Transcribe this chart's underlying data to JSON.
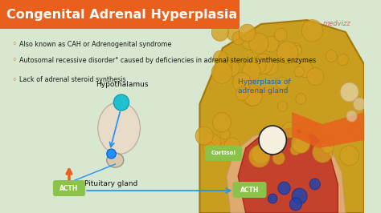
{
  "title": "Congenital Adrenal Hyperplasia",
  "title_bg": "#E8601C",
  "title_color": "#FFFFFF",
  "bg_color": "#D8E8D0",
  "bullet_color": "#1A1A1A",
  "bullets": [
    "Also known as CAH or Adrenogenital syndrome",
    "Autosomal recessive disorder° caused by deficiencies in adrenal steroid synthesis enzymes",
    "Lack of adrenal steroid synthesis"
  ],
  "bullet_symbol": "◦",
  "label_hypothalamus": "Hypothalamus",
  "label_pituitary": "Pituitary gland",
  "label_hyperplasia": "Hyperplasia of\nadrenal gland",
  "label_acth1": "ACTH",
  "label_acth2": "ACTH",
  "label_cortisol": "Cortisol",
  "label_color_blue": "#1565C0",
  "arrow_color": "#1E90FF",
  "acth_pill_color": "#8BC34A",
  "acth_text_color": "#FFFFFF",
  "cortisol_pill_color": "#8BC34A",
  "orange_arrow_color": "#E8601C",
  "hyperplasia_label_color": "#1565C0",
  "medvizz_color": "#CC3333",
  "watermark": "medvizz"
}
